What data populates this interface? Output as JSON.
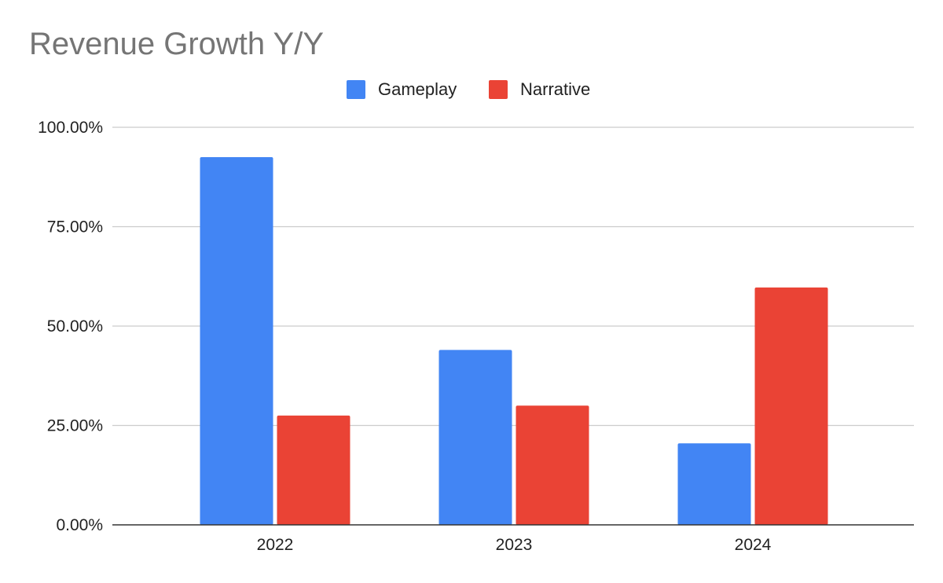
{
  "chart_data": {
    "type": "bar",
    "title": "Revenue Growth Y/Y",
    "xlabel": "",
    "ylabel": "",
    "categories": [
      "2022",
      "2023",
      "2024"
    ],
    "series": [
      {
        "name": "Gameplay",
        "color": "#4285f4",
        "values": [
          92.5,
          44,
          20.5
        ]
      },
      {
        "name": "Narrative",
        "color": "#ea4335",
        "values": [
          27.5,
          30,
          59.7
        ]
      }
    ],
    "ylim": [
      0,
      100
    ],
    "yticks": [
      0,
      25,
      50,
      75,
      100
    ],
    "ytick_labels": [
      "0.00%",
      "25.00%",
      "50.00%",
      "75.00%",
      "100.00%"
    ],
    "grid": true,
    "legend_position": "top-center"
  }
}
